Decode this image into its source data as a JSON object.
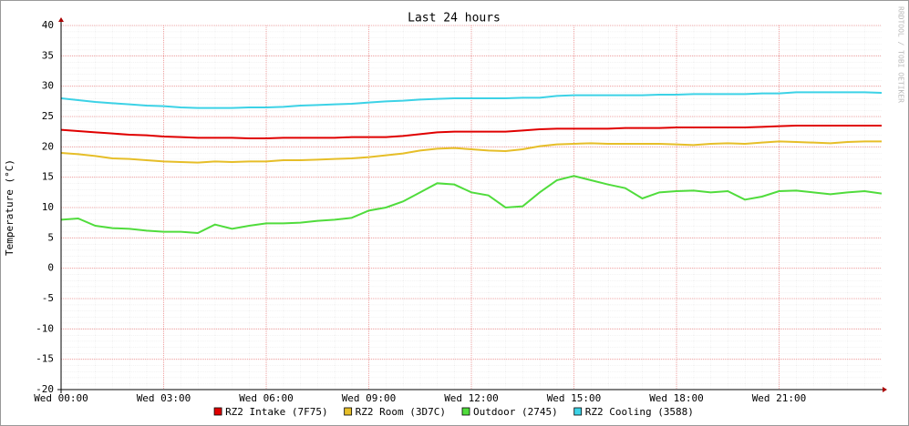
{
  "chart_data": {
    "type": "line",
    "title": "Last 24 hours",
    "ylabel": "Temperature (°C)",
    "watermark": "RRDTOOL / TOBI OETIKER",
    "x": [
      0,
      0.5,
      1,
      1.5,
      2,
      2.5,
      3,
      3.5,
      4,
      4.5,
      5,
      5.5,
      6,
      6.5,
      7,
      7.5,
      8,
      8.5,
      9,
      9.5,
      10,
      10.5,
      11,
      11.5,
      12,
      12.5,
      13,
      13.5,
      14,
      14.5,
      15,
      15.5,
      16,
      16.5,
      17,
      17.5,
      18,
      18.5,
      19,
      19.5,
      20,
      20.5,
      21,
      21.5,
      22,
      22.5,
      23,
      23.5,
      24
    ],
    "xlim": [
      0,
      24
    ],
    "xticks": [
      {
        "value": 0,
        "label": "Wed 00:00"
      },
      {
        "value": 3,
        "label": "Wed 03:00"
      },
      {
        "value": 6,
        "label": "Wed 06:00"
      },
      {
        "value": 9,
        "label": "Wed 09:00"
      },
      {
        "value": 12,
        "label": "Wed 12:00"
      },
      {
        "value": 15,
        "label": "Wed 15:00"
      },
      {
        "value": 18,
        "label": "Wed 18:00"
      },
      {
        "value": 21,
        "label": "Wed 21:00"
      }
    ],
    "ylim": [
      -20,
      40
    ],
    "yticks": [
      -20,
      -15,
      -10,
      -5,
      0,
      5,
      10,
      15,
      20,
      25,
      30,
      35,
      40
    ],
    "grid": true,
    "series": [
      {
        "name": "RZ2 Intake (7F75)",
        "color": "#e00000",
        "values": [
          22.8,
          22.6,
          22.4,
          22.2,
          22.0,
          21.9,
          21.7,
          21.6,
          21.5,
          21.5,
          21.5,
          21.4,
          21.4,
          21.5,
          21.5,
          21.5,
          21.5,
          21.6,
          21.6,
          21.6,
          21.8,
          22.1,
          22.4,
          22.5,
          22.5,
          22.5,
          22.5,
          22.7,
          22.9,
          23.0,
          23.0,
          23.0,
          23.0,
          23.1,
          23.1,
          23.1,
          23.2,
          23.2,
          23.2,
          23.2,
          23.2,
          23.3,
          23.4,
          23.5,
          23.5,
          23.5,
          23.5,
          23.5,
          23.5
        ]
      },
      {
        "name": "RZ2 Room (3D7C)",
        "color": "#e6be28",
        "values": [
          19.0,
          18.8,
          18.5,
          18.1,
          18.0,
          17.8,
          17.6,
          17.5,
          17.4,
          17.6,
          17.5,
          17.6,
          17.6,
          17.8,
          17.8,
          17.9,
          18.0,
          18.1,
          18.3,
          18.6,
          18.9,
          19.4,
          19.7,
          19.8,
          19.6,
          19.4,
          19.3,
          19.6,
          20.1,
          20.4,
          20.5,
          20.6,
          20.5,
          20.5,
          20.5,
          20.5,
          20.4,
          20.3,
          20.5,
          20.6,
          20.5,
          20.7,
          20.9,
          20.8,
          20.7,
          20.6,
          20.8,
          20.9,
          20.9
        ]
      },
      {
        "name": "Outdoor (2745)",
        "color": "#50dc3c",
        "values": [
          8.0,
          8.2,
          7.0,
          6.6,
          6.5,
          6.2,
          6.0,
          6.0,
          5.8,
          7.2,
          6.5,
          7.0,
          7.4,
          7.4,
          7.5,
          7.8,
          8.0,
          8.3,
          9.5,
          10.0,
          11.0,
          12.5,
          14.0,
          13.8,
          12.5,
          12.0,
          10.0,
          10.2,
          12.5,
          14.5,
          15.2,
          14.5,
          13.8,
          13.2,
          11.5,
          12.5,
          12.7,
          12.8,
          12.5,
          12.7,
          11.3,
          11.8,
          12.7,
          12.8,
          12.5,
          12.2,
          12.5,
          12.7,
          12.3
        ]
      },
      {
        "name": "RZ2 Cooling (3588)",
        "color": "#3cd2e6",
        "values": [
          28.0,
          27.7,
          27.4,
          27.2,
          27.0,
          26.8,
          26.7,
          26.5,
          26.4,
          26.4,
          26.4,
          26.5,
          26.5,
          26.6,
          26.8,
          26.9,
          27.0,
          27.1,
          27.3,
          27.5,
          27.6,
          27.8,
          27.9,
          28.0,
          28.0,
          28.0,
          28.0,
          28.1,
          28.1,
          28.4,
          28.5,
          28.5,
          28.5,
          28.5,
          28.5,
          28.6,
          28.6,
          28.7,
          28.7,
          28.7,
          28.7,
          28.8,
          28.8,
          29.0,
          29.0,
          29.0,
          29.0,
          29.0,
          28.9
        ]
      }
    ]
  }
}
